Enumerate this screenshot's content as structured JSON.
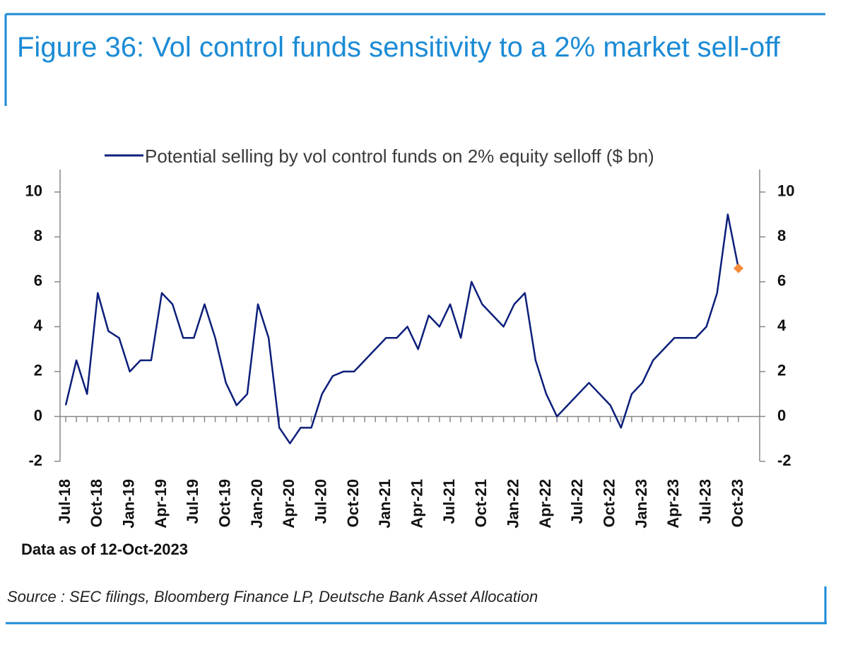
{
  "chart_data": {
    "type": "line",
    "title": "Figure 36: Vol control funds sensitivity to a 2% market sell-off",
    "note": "Data as of 12-Oct-2023",
    "source": "Source : SEC filings, Bloomberg Finance LP, Deutsche Bank Asset Allocation",
    "categories": [
      "Jul-18",
      null,
      null,
      "Oct-18",
      null,
      null,
      "Jan-19",
      null,
      null,
      "Apr-19",
      null,
      null,
      "Jul-19",
      null,
      null,
      "Oct-19",
      null,
      null,
      "Jan-20",
      null,
      null,
      "Apr-20",
      null,
      null,
      "Jul-20",
      null,
      null,
      "Oct-20",
      null,
      null,
      "Jan-21",
      null,
      null,
      "Apr-21",
      null,
      null,
      "Jul-21",
      null,
      null,
      "Oct-21",
      null,
      null,
      "Jan-22",
      null,
      null,
      "Apr-22",
      null,
      null,
      "Jul-22",
      null,
      null,
      "Oct-22",
      null,
      null,
      "Jan-23",
      null,
      null,
      "Apr-23",
      null,
      null,
      "Jul-23",
      null,
      null,
      "Oct-23"
    ],
    "series": [
      {
        "name": "Potential selling by vol control funds on 2% equity selloff ($ bn)",
        "color": "#0c1f7a",
        "values": [
          0.5,
          2.5,
          1.0,
          5.5,
          3.8,
          3.5,
          2.0,
          2.5,
          2.5,
          5.5,
          5.0,
          3.5,
          3.5,
          5.0,
          3.5,
          1.5,
          0.5,
          1.0,
          5.0,
          3.5,
          -0.5,
          -1.2,
          -0.5,
          -0.5,
          1.0,
          1.8,
          2.0,
          2.0,
          2.5,
          3.0,
          3.5,
          3.5,
          4.0,
          3.0,
          4.5,
          4.0,
          5.0,
          3.5,
          6.0,
          5.0,
          4.5,
          4.0,
          5.0,
          5.5,
          2.5,
          1.0,
          0.0,
          0.5,
          1.0,
          1.5,
          1.0,
          0.5,
          -0.5,
          1.0,
          1.5,
          2.5,
          3.0,
          3.5,
          3.5,
          3.5,
          4.0,
          5.5,
          9.0,
          6.6
        ]
      }
    ],
    "marker": {
      "index": 63,
      "value": 6.6,
      "color": "#f58b3c"
    },
    "ylim": [
      -2,
      11
    ],
    "yticks": [
      -2,
      0,
      2,
      4,
      6,
      8,
      10
    ],
    "y2lim": [
      -2,
      11
    ],
    "y2ticks": [
      -2,
      0,
      2,
      4,
      6,
      8,
      10
    ]
  }
}
